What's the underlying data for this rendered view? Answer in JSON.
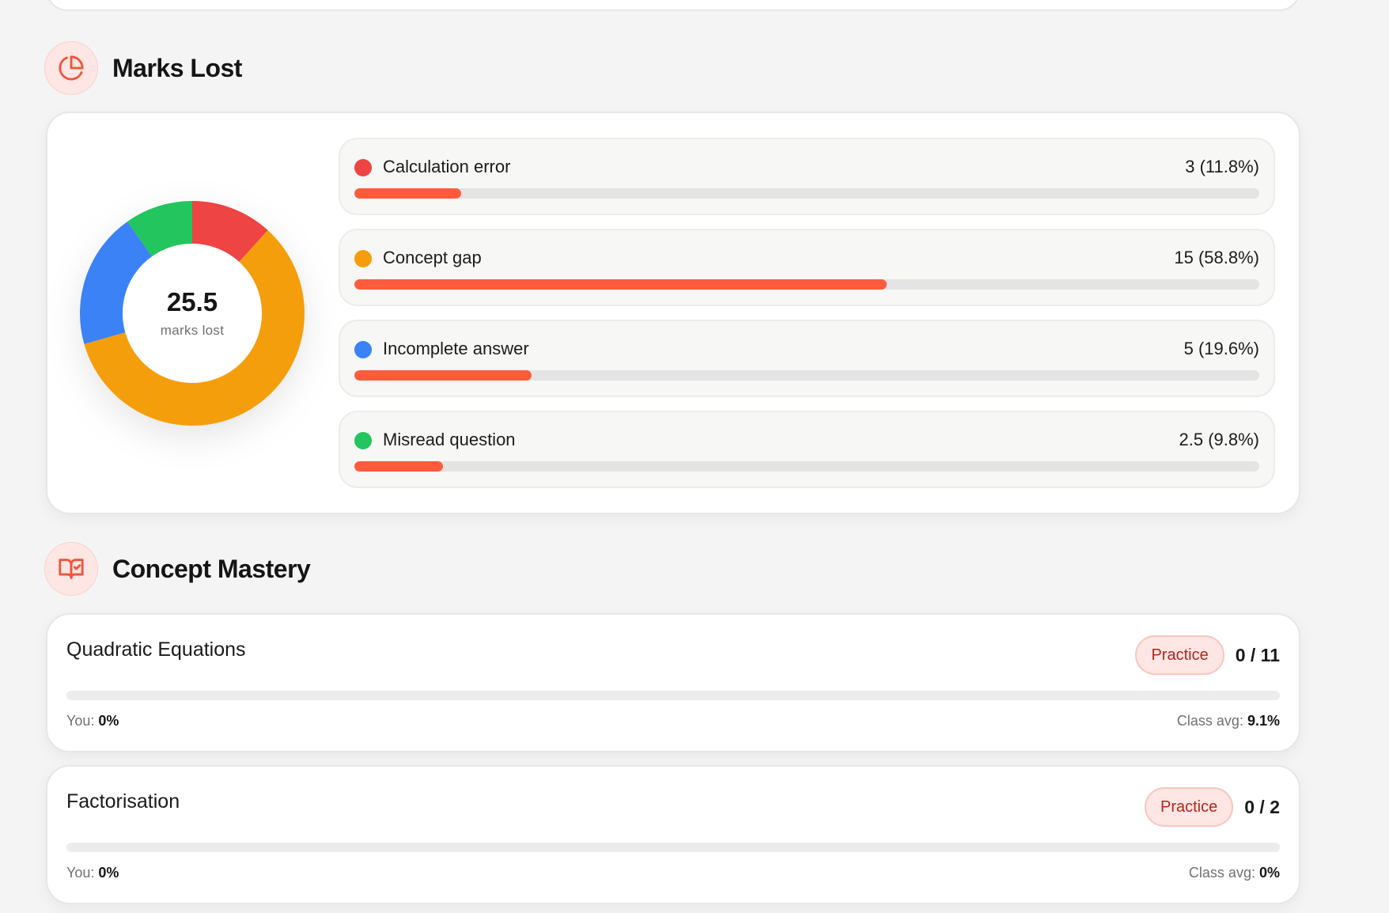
{
  "marks_lost": {
    "title": "Marks Lost",
    "icon": "pie-chart-icon",
    "accent": "#ff5b3c",
    "donut": {
      "value": "25.5",
      "label": "marks lost"
    },
    "categories": [
      {
        "label": "Calculation error",
        "value_text": "3 (11.8%)",
        "marks": 3,
        "percent": 11.8,
        "color": "#ef4444"
      },
      {
        "label": "Concept gap",
        "value_text": "15 (58.8%)",
        "marks": 15,
        "percent": 58.8,
        "color": "#f59e0b"
      },
      {
        "label": "Incomplete answer",
        "value_text": "5 (19.6%)",
        "marks": 5,
        "percent": 19.6,
        "color": "#3b82f6"
      },
      {
        "label": "Misread question",
        "value_text": "2.5 (9.8%)",
        "marks": 2.5,
        "percent": 9.8,
        "color": "#22c55e"
      }
    ]
  },
  "concept_mastery": {
    "title": "Concept Mastery",
    "icon": "book-check-icon",
    "items": [
      {
        "name": "Quadratic Equations",
        "badge": "Practice",
        "score": "0 / 11",
        "you_label": "You:",
        "you_value": "0%",
        "you_percent": 0,
        "avg_label": "Class avg:",
        "avg_value": "9.1%"
      },
      {
        "name": "Factorisation",
        "badge": "Practice",
        "score": "0 / 2",
        "you_label": "You:",
        "you_value": "0%",
        "you_percent": 0,
        "avg_label": "Class avg:",
        "avg_value": "0%"
      }
    ]
  }
}
